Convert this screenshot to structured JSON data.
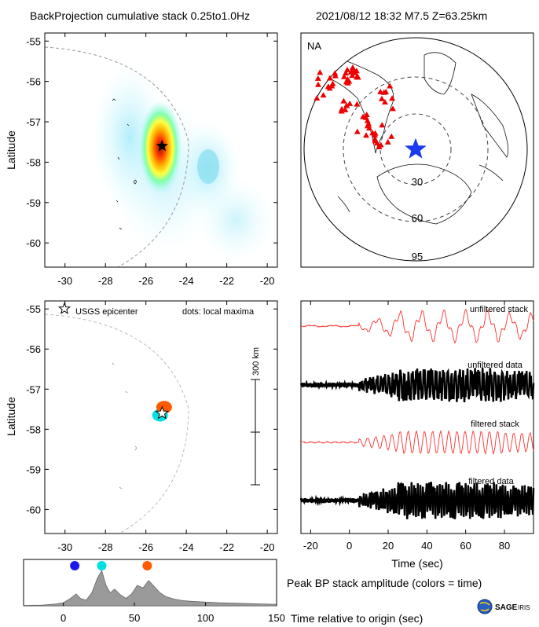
{
  "header": {
    "left_title": "BackProjection cumulative stack 0.25to1.0Hz",
    "right_title": "2021/08/12 18:32   M7.5  Z=63.25km"
  },
  "chart_data": [
    {
      "type": "heatmap",
      "name": "cumulative-stack-map",
      "ylabel": "Latitude",
      "xticks": [
        "-30",
        "-28",
        "-26",
        "-24",
        "-22",
        "-20"
      ],
      "yticks": [
        "-55",
        "-56",
        "-57",
        "-58",
        "-59",
        "-60"
      ],
      "xlim": [
        -31,
        -19.5
      ],
      "ylim": [
        -60.6,
        -54.8
      ],
      "epicenter": {
        "lon": -25.2,
        "lat": -57.6
      },
      "peak": {
        "lon": -25.2,
        "lat": -57.6
      }
    },
    {
      "type": "scatter",
      "name": "station-map",
      "region_label": "NA",
      "ring_labels": [
        "30",
        "60",
        "95"
      ],
      "ring_distances_deg": [
        30,
        60,
        95
      ]
    },
    {
      "type": "scatter",
      "name": "local-maxima-map",
      "ylabel": "Latitude",
      "xticks": [
        "-30",
        "-28",
        "-26",
        "-24",
        "-22",
        "-20"
      ],
      "yticks": [
        "-55",
        "-56",
        "-57",
        "-58",
        "-59",
        "-60"
      ],
      "xlim": [
        -31,
        -19.5
      ],
      "ylim": [
        -60.6,
        -54.8
      ],
      "legend": {
        "epicenter_label": "USGS epicenter",
        "dots_label": "dots: local maxima"
      },
      "scale_bar_label": "300 km",
      "epicenter": {
        "lon": -25.2,
        "lat": -57.6
      },
      "maxima": [
        {
          "lon": -25.3,
          "lat": -57.65,
          "color": "#00e0e0"
        },
        {
          "lon": -25.1,
          "lat": -57.45,
          "color": "#ff5a00"
        }
      ]
    },
    {
      "type": "line",
      "name": "waveforms",
      "xlabel": "Time (sec)",
      "xticks": [
        "-20",
        "0",
        "20",
        "40",
        "60",
        "80"
      ],
      "xlim": [
        -25,
        95
      ],
      "traces": [
        {
          "label": "unfiltered stack",
          "color": "#ff3030"
        },
        {
          "label": "unfiltered data",
          "color": "#000000"
        },
        {
          "label": "filtered stack",
          "color": "#ff3030"
        },
        {
          "label": "filtered data",
          "color": "#000000"
        }
      ]
    },
    {
      "type": "area",
      "name": "peak-amplitude",
      "title": "Peak BP stack amplitude (colors = time)",
      "xlabel": "Time relative to origin (sec)",
      "xticks": [
        "0",
        "50",
        "100",
        "150"
      ],
      "xlim": [
        -28,
        150
      ],
      "x": [
        -28,
        -15,
        -5,
        0,
        5,
        9,
        12,
        16,
        20,
        24,
        27,
        30,
        33,
        36,
        40,
        44,
        48,
        52,
        56,
        60,
        64,
        68,
        72,
        78,
        84,
        90,
        100,
        110,
        120,
        130,
        140,
        150
      ],
      "values": [
        0.01,
        0.02,
        0.05,
        0.08,
        0.2,
        0.32,
        0.2,
        0.15,
        0.35,
        0.75,
        0.95,
        0.55,
        0.35,
        0.45,
        0.3,
        0.2,
        0.32,
        0.55,
        0.48,
        0.68,
        0.52,
        0.35,
        0.25,
        0.18,
        0.14,
        0.12,
        0.1,
        0.08,
        0.07,
        0.06,
        0.05,
        0.04
      ],
      "markers": [
        {
          "time": 8,
          "color": "#1a1aee"
        },
        {
          "time": 27,
          "color": "#00e0e0"
        },
        {
          "time": 59,
          "color": "#ff5a00"
        }
      ]
    }
  ],
  "logo": {
    "text": "SAGE",
    "suffix": "IRIS"
  }
}
